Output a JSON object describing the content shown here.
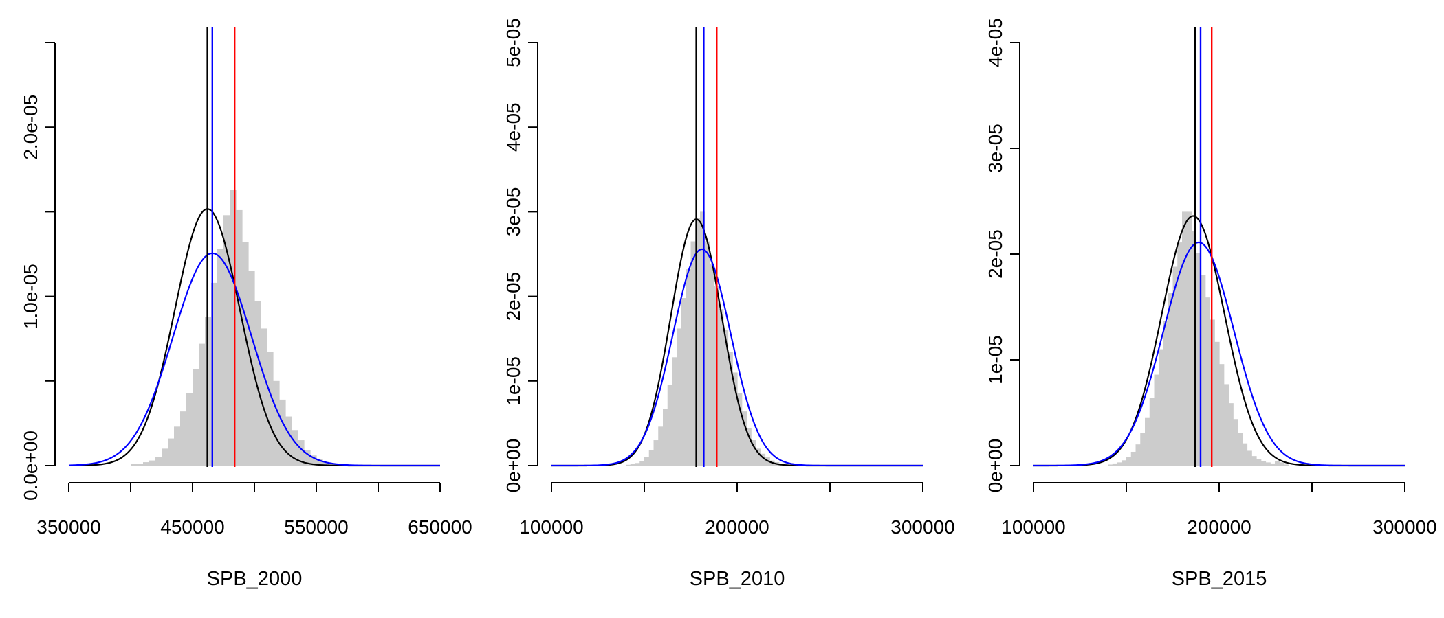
{
  "colors": {
    "hist_fill": "#cccccc",
    "normal_black": "#000000",
    "normal_blue": "#0000ff",
    "vline_black": "#000000",
    "vline_blue": "#0000ff",
    "vline_red": "#ff0000"
  },
  "chart_data": [
    {
      "type": "histogram",
      "xlabel": "SPB_2000",
      "ylabel": "",
      "xlim": [
        350000,
        650000
      ],
      "ylim": [
        0,
        2.5e-05
      ],
      "x_ticks": [
        350000,
        400000,
        450000,
        500000,
        550000,
        600000,
        650000
      ],
      "x_tick_labels": [
        "350000",
        "",
        "450000",
        "",
        "550000",
        "",
        "650000"
      ],
      "y_ticks": [
        0,
        5e-06,
        1e-05,
        1.5e-05,
        2e-05,
        2.5e-05
      ],
      "y_tick_labels": [
        "0.0e+00",
        "",
        "1.0e-05",
        "",
        "2.0e-05",
        ""
      ],
      "histogram": {
        "bin_start": 400000,
        "bin_width": 5000,
        "densities": [
          1e-07,
          1e-07,
          2e-07,
          3e-07,
          5e-07,
          1e-06,
          1.6e-06,
          2.3e-06,
          3.2e-06,
          4.3e-06,
          5.7e-06,
          7.2e-06,
          8.8e-06,
          1.08e-05,
          1.28e-05,
          1.48e-05,
          1.63e-05,
          1.51e-05,
          1.32e-05,
          1.15e-05,
          9.7e-06,
          8.1e-06,
          6.7e-06,
          5e-06,
          3.9e-06,
          2.9e-06,
          2.1e-06,
          1.5e-06,
          9e-07,
          6e-07,
          4e-07,
          2e-07,
          1e-07,
          1e-07
        ]
      },
      "normal_curves": [
        {
          "color": "black",
          "mean": 462000,
          "sd": 26300
        },
        {
          "color": "blue",
          "mean": 466000,
          "sd": 31800
        }
      ],
      "vlines": [
        {
          "color": "black",
          "x": 462000
        },
        {
          "color": "blue",
          "x": 466000
        },
        {
          "color": "red",
          "x": 484000
        }
      ]
    },
    {
      "type": "histogram",
      "xlabel": "SPB_2010",
      "ylabel": "",
      "xlim": [
        100000,
        300000
      ],
      "ylim": [
        0,
        5e-05
      ],
      "x_ticks": [
        100000,
        150000,
        200000,
        250000,
        300000
      ],
      "x_tick_labels": [
        "100000",
        "",
        "200000",
        "",
        "300000"
      ],
      "y_ticks": [
        0,
        1e-05,
        2e-05,
        3e-05,
        4e-05,
        5e-05
      ],
      "y_tick_labels": [
        "0e+00",
        "1e-05",
        "2e-05",
        "3e-05",
        "4e-05",
        "5e-05"
      ],
      "histogram": {
        "bin_start": 140000,
        "bin_width": 2500,
        "densities": [
          1e-07,
          2e-07,
          3e-07,
          5e-07,
          1e-06,
          1.8e-06,
          3e-06,
          4.6e-06,
          6.7e-06,
          9.5e-06,
          1.28e-05,
          1.62e-05,
          1.98e-05,
          2.32e-05,
          2.65e-05,
          2.93e-05,
          3e-05,
          2.65e-05,
          2.38e-05,
          2.12e-05,
          1.85e-05,
          1.6e-05,
          1.34e-05,
          1.1e-05,
          8.6e-06,
          6.4e-06,
          4.4e-06,
          3e-06,
          2e-06,
          1.4e-06,
          1e-06,
          6e-07,
          4e-07,
          2e-07,
          1e-07
        ]
      },
      "normal_curves": [
        {
          "color": "black",
          "mean": 178000,
          "sd": 13700
        },
        {
          "color": "blue",
          "mean": 181000,
          "sd": 15600
        }
      ],
      "vlines": [
        {
          "color": "black",
          "x": 178000
        },
        {
          "color": "blue",
          "x": 182000
        },
        {
          "color": "red",
          "x": 189000
        }
      ]
    },
    {
      "type": "histogram",
      "xlabel": "SPB_2015",
      "ylabel": "",
      "xlim": [
        100000,
        300000
      ],
      "ylim": [
        0,
        4e-05
      ],
      "x_ticks": [
        100000,
        150000,
        200000,
        250000,
        300000
      ],
      "x_tick_labels": [
        "100000",
        "",
        "200000",
        "",
        "300000"
      ],
      "y_ticks": [
        0,
        1e-05,
        2e-05,
        3e-05,
        4e-05
      ],
      "y_tick_labels": [
        "0e+00",
        "1e-05",
        "2e-05",
        "3e-05",
        "4e-05"
      ],
      "histogram": {
        "bin_start": 140000,
        "bin_width": 2500,
        "densities": [
          1e-07,
          2e-07,
          3e-07,
          5e-07,
          8e-07,
          1.3e-06,
          2e-06,
          3.1e-06,
          4.5e-06,
          6.4e-06,
          8.6e-06,
          1.1e-05,
          1.37e-05,
          1.63e-05,
          1.88e-05,
          2.11e-05,
          2.4e-05,
          2.4e-05,
          2.22e-05,
          2.01e-05,
          1.8e-05,
          1.59e-05,
          1.38e-05,
          1.17e-05,
          9.6e-06,
          7.7e-06,
          5.9e-06,
          4.4e-06,
          3.1e-06,
          2.1e-06,
          1.4e-06,
          9e-07,
          6e-07,
          4e-07,
          3e-07,
          2e-07,
          4e-07,
          3e-07,
          1e-07
        ]
      },
      "normal_curves": [
        {
          "color": "black",
          "mean": 186000,
          "sd": 16900
        },
        {
          "color": "blue",
          "mean": 189000,
          "sd": 18900
        }
      ],
      "vlines": [
        {
          "color": "black",
          "x": 187000
        },
        {
          "color": "blue",
          "x": 190000
        },
        {
          "color": "red",
          "x": 196000
        }
      ]
    }
  ]
}
